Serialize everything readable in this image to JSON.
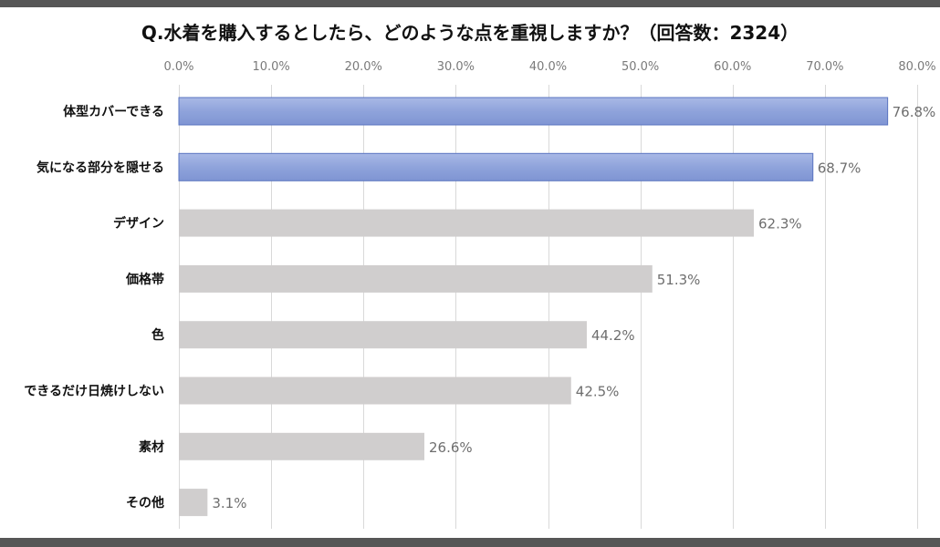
{
  "chart_data": {
    "type": "bar",
    "orientation": "horizontal",
    "title": "Q.水着を購入するとしたら、どのような点を重視しますか？（回答数：2324）",
    "xlabel": "",
    "ylabel": "",
    "xlim": [
      0,
      80
    ],
    "ticks": [
      0,
      10,
      20,
      30,
      40,
      50,
      60,
      70,
      80
    ],
    "tick_labels": [
      "0.0%",
      "10.0%",
      "20.0%",
      "30.0%",
      "40.0%",
      "50.0%",
      "60.0%",
      "70.0%",
      "80.0%"
    ],
    "axis_position": "top",
    "grid": true,
    "categories": [
      "体型カバーできる",
      "気になる部分を隠せる",
      "デザイン",
      "価格帯",
      "色",
      "できるだけ日焼けしない",
      "素材",
      "その他"
    ],
    "values": [
      76.8,
      68.7,
      62.3,
      51.3,
      44.2,
      42.5,
      26.6,
      3.1
    ],
    "value_labels": [
      "76.8%",
      "68.7%",
      "62.3%",
      "51.3%",
      "44.2%",
      "42.5%",
      "26.6%",
      "3.1%"
    ],
    "highlighted": [
      true,
      true,
      false,
      false,
      false,
      false,
      false,
      false
    ],
    "colors": {
      "highlight": "#8fa3db",
      "highlight_border": "#5a74c0",
      "normal": "#d0cece",
      "grid": "#d9d9d9"
    }
  }
}
